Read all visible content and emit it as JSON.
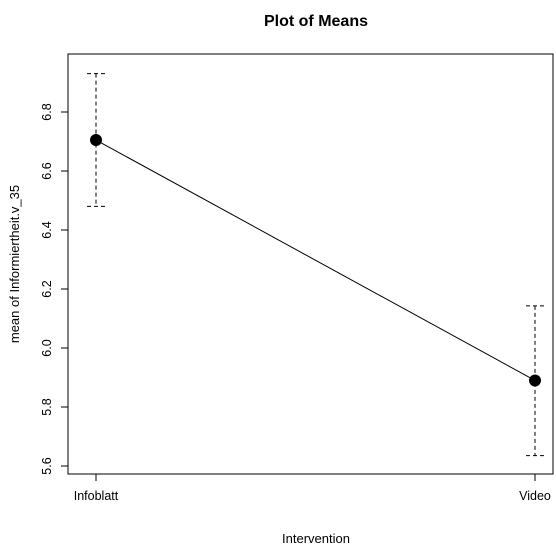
{
  "chart_data": {
    "type": "line",
    "title": "Plot of Means",
    "xlabel": "Intervention",
    "ylabel": "mean of Informiertheit.v_35",
    "categories": [
      "Infoblatt",
      "Video"
    ],
    "series": [
      {
        "values": [
          6.705,
          5.89
        ],
        "error_low": [
          6.48,
          5.635
        ],
        "error_high": [
          6.93,
          6.143
        ]
      }
    ],
    "ylim": [
      5.6,
      6.8
    ],
    "yticks": [
      "5.6",
      "5.8",
      "6.0",
      "6.2",
      "6.4",
      "6.6",
      "6.8"
    ],
    "grid": false,
    "legend": "none",
    "colors": {
      "line": "#000000",
      "marker": "#000000",
      "axis": "#000000"
    }
  }
}
